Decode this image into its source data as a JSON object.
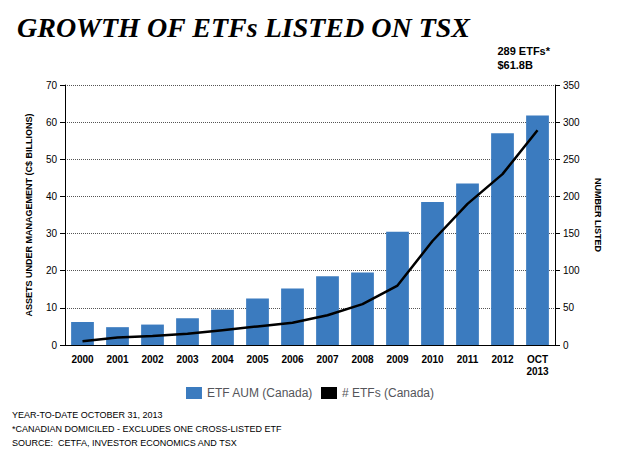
{
  "chart_data": {
    "type": "bar",
    "title": "GROWTH OF ETFs LISTED ON TSX",
    "categories": [
      "2000",
      "2001",
      "2002",
      "2003",
      "2004",
      "2005",
      "2006",
      "2007",
      "2008",
      "2009",
      "2010",
      "2011",
      "2012",
      "OCT\n2013"
    ],
    "series": [
      {
        "name": "ETF AUM (Canada)",
        "type": "bar",
        "color": "#3b7bbf",
        "values": [
          6.2,
          4.8,
          5.5,
          7.2,
          9.5,
          12.5,
          15.2,
          18.5,
          19.5,
          30.5,
          38.5,
          43.5,
          57.0,
          61.8
        ]
      },
      {
        "name": "# ETFs (Canada)",
        "type": "line",
        "color": "#000000",
        "axis": "y2",
        "values": [
          5,
          10,
          12,
          15,
          20,
          25,
          30,
          40,
          55,
          80,
          140,
          190,
          230,
          289
        ]
      }
    ],
    "ylabel": "ASSETS UNDER MANAGEMENT (C$ BILLIONS)",
    "y2label": "NUMBER LISTED",
    "ylim": [
      0,
      70
    ],
    "yticks": [
      0,
      10,
      20,
      30,
      40,
      50,
      60,
      70
    ],
    "y2lim": [
      0,
      350
    ],
    "y2ticks": [
      0,
      50,
      100,
      150,
      200,
      250,
      300,
      350
    ],
    "grid": true,
    "legend": "bottom",
    "annotations": [
      {
        "text": "289 ETFs*\n$61.8B"
      }
    ],
    "footnotes": [
      "YEAR-TO-DATE OCTOBER 31, 2013",
      "*CANADIAN DOMICILED - EXCLUDES ONE CROSS-LISTED ETF",
      "SOURCE:  CETFA, INVESTOR ECONOMICS AND TSX"
    ]
  }
}
